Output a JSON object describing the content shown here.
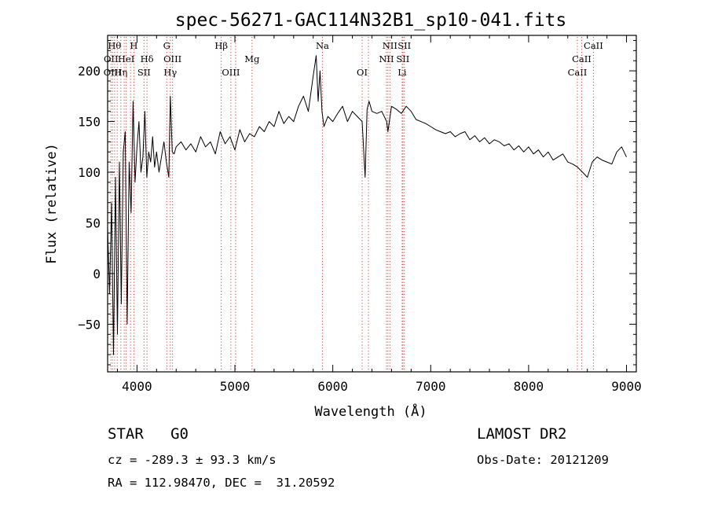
{
  "chart_data": {
    "type": "line",
    "title": "spec-56271-GAC114N32B1_sp10-041.fits",
    "xlabel": "Wavelength (Å)",
    "ylabel": "Flux (relative)",
    "xlim": [
      3700,
      9100
    ],
    "ylim": [
      -97,
      235
    ],
    "xticks": [
      4000,
      5000,
      6000,
      7000,
      8000,
      9000
    ],
    "yticks": [
      -50,
      0,
      50,
      100,
      150,
      200
    ],
    "grid": false,
    "series": [
      {
        "x": [
          3700,
          3720,
          3740,
          3760,
          3780,
          3800,
          3820,
          3840,
          3860,
          3880,
          3900,
          3920,
          3940,
          3960,
          3980,
          4000,
          4020,
          4040,
          4060,
          4080,
          4100,
          4120,
          4140,
          4160,
          4180,
          4200,
          4225,
          4250,
          4275,
          4300,
          4325,
          4340,
          4360,
          4380,
          4400,
          4450,
          4500,
          4550,
          4600,
          4650,
          4700,
          4750,
          4800,
          4850,
          4900,
          4950,
          5000,
          5050,
          5100,
          5150,
          5200,
          5250,
          5300,
          5350,
          5400,
          5450,
          5500,
          5550,
          5600,
          5650,
          5700,
          5750,
          5800,
          5830,
          5850,
          5870,
          5890,
          5910,
          5950,
          6000,
          6050,
          6100,
          6150,
          6200,
          6250,
          6300,
          6330,
          6350,
          6370,
          6400,
          6450,
          6500,
          6550,
          6563,
          6600,
          6650,
          6700,
          6750,
          6800,
          6850,
          6900,
          6950,
          7000,
          7050,
          7100,
          7150,
          7200,
          7250,
          7300,
          7350,
          7400,
          7450,
          7500,
          7550,
          7600,
          7650,
          7700,
          7750,
          7800,
          7850,
          7900,
          7950,
          8000,
          8050,
          8100,
          8150,
          8200,
          8250,
          8300,
          8350,
          8400,
          8450,
          8500,
          8550,
          8600,
          8650,
          8700,
          8750,
          8800,
          8850,
          8900,
          8950,
          9000
        ],
        "values": [
          45,
          -20,
          70,
          -80,
          95,
          -60,
          110,
          -30,
          120,
          140,
          -50,
          110,
          60,
          170,
          90,
          125,
          150,
          100,
          115,
          160,
          95,
          120,
          110,
          135,
          105,
          120,
          100,
          115,
          130,
          110,
          95,
          175,
          120,
          118,
          125,
          130,
          122,
          128,
          120,
          135,
          125,
          130,
          118,
          140,
          128,
          135,
          122,
          142,
          130,
          138,
          135,
          145,
          140,
          150,
          145,
          160,
          148,
          155,
          150,
          165,
          175,
          160,
          195,
          215,
          170,
          200,
          160,
          145,
          155,
          150,
          158,
          165,
          150,
          160,
          155,
          150,
          95,
          162,
          170,
          160,
          158,
          160,
          150,
          140,
          165,
          162,
          158,
          165,
          160,
          152,
          150,
          148,
          145,
          142,
          140,
          138,
          140,
          135,
          138,
          140,
          132,
          136,
          130,
          134,
          128,
          132,
          130,
          126,
          128,
          122,
          126,
          120,
          125,
          118,
          122,
          115,
          120,
          112,
          115,
          118,
          110,
          108,
          105,
          100,
          95,
          110,
          115,
          112,
          110,
          108,
          120,
          125,
          115
        ]
      }
    ],
    "line_marks": [
      {
        "wl": 3734,
        "label": "OII",
        "tier": 2
      },
      {
        "wl": 3750,
        "label": "OIII",
        "tier": 3
      },
      {
        "wl": 3771,
        "label": "Hθ",
        "tier": 1
      },
      {
        "wl": 3798,
        "label": "",
        "tier": 0
      },
      {
        "wl": 3835,
        "label": "Hη",
        "tier": 3
      },
      {
        "wl": 3869,
        "label": "",
        "tier": 0
      },
      {
        "wl": 3889,
        "label": "HeI",
        "tier": 2
      },
      {
        "wl": 3934,
        "label": "",
        "tier": 0
      },
      {
        "wl": 3968,
        "label": "H",
        "tier": 1
      },
      {
        "wl": 4072,
        "label": "SII",
        "tier": 3
      },
      {
        "wl": 4102,
        "label": "Hδ",
        "tier": 2
      },
      {
        "wl": 4304,
        "label": "G",
        "tier": 1
      },
      {
        "wl": 4340,
        "label": "Hγ",
        "tier": 3
      },
      {
        "wl": 4363,
        "label": "OIII",
        "tier": 2
      },
      {
        "wl": 4861,
        "label": "Hβ",
        "tier": 1
      },
      {
        "wl": 4959,
        "label": "OIII",
        "tier": 3
      },
      {
        "wl": 5007,
        "label": "",
        "tier": 0
      },
      {
        "wl": 5175,
        "label": "Mg",
        "tier": 2
      },
      {
        "wl": 5894,
        "label": "Na",
        "tier": 1
      },
      {
        "wl": 6300,
        "label": "OI",
        "tier": 3
      },
      {
        "wl": 6364,
        "label": "",
        "tier": 0
      },
      {
        "wl": 6548,
        "label": "NII",
        "tier": 2
      },
      {
        "wl": 6563,
        "label": "",
        "tier": 0
      },
      {
        "wl": 6583,
        "label": "NII",
        "tier": 1
      },
      {
        "wl": 6708,
        "label": "Li",
        "tier": 3
      },
      {
        "wl": 6716,
        "label": "SII",
        "tier": 2
      },
      {
        "wl": 6731,
        "label": "SII",
        "tier": 1
      },
      {
        "wl": 8498,
        "label": "CaII",
        "tier": 3
      },
      {
        "wl": 8542,
        "label": "CaII",
        "tier": 2
      },
      {
        "wl": 8662,
        "label": "CaII",
        "tier": 1
      }
    ]
  },
  "info": {
    "object": "STAR   G0",
    "survey": "LAMOST DR2",
    "redshift": "cz = -289.3 ± 93.3 km/s",
    "obs_date": "Obs-Date: 20121209",
    "coords": "RA = 112.98470, DEC =  31.20592"
  },
  "colors": {
    "spectrum": "#000000",
    "line_marker": "#d04040"
  }
}
